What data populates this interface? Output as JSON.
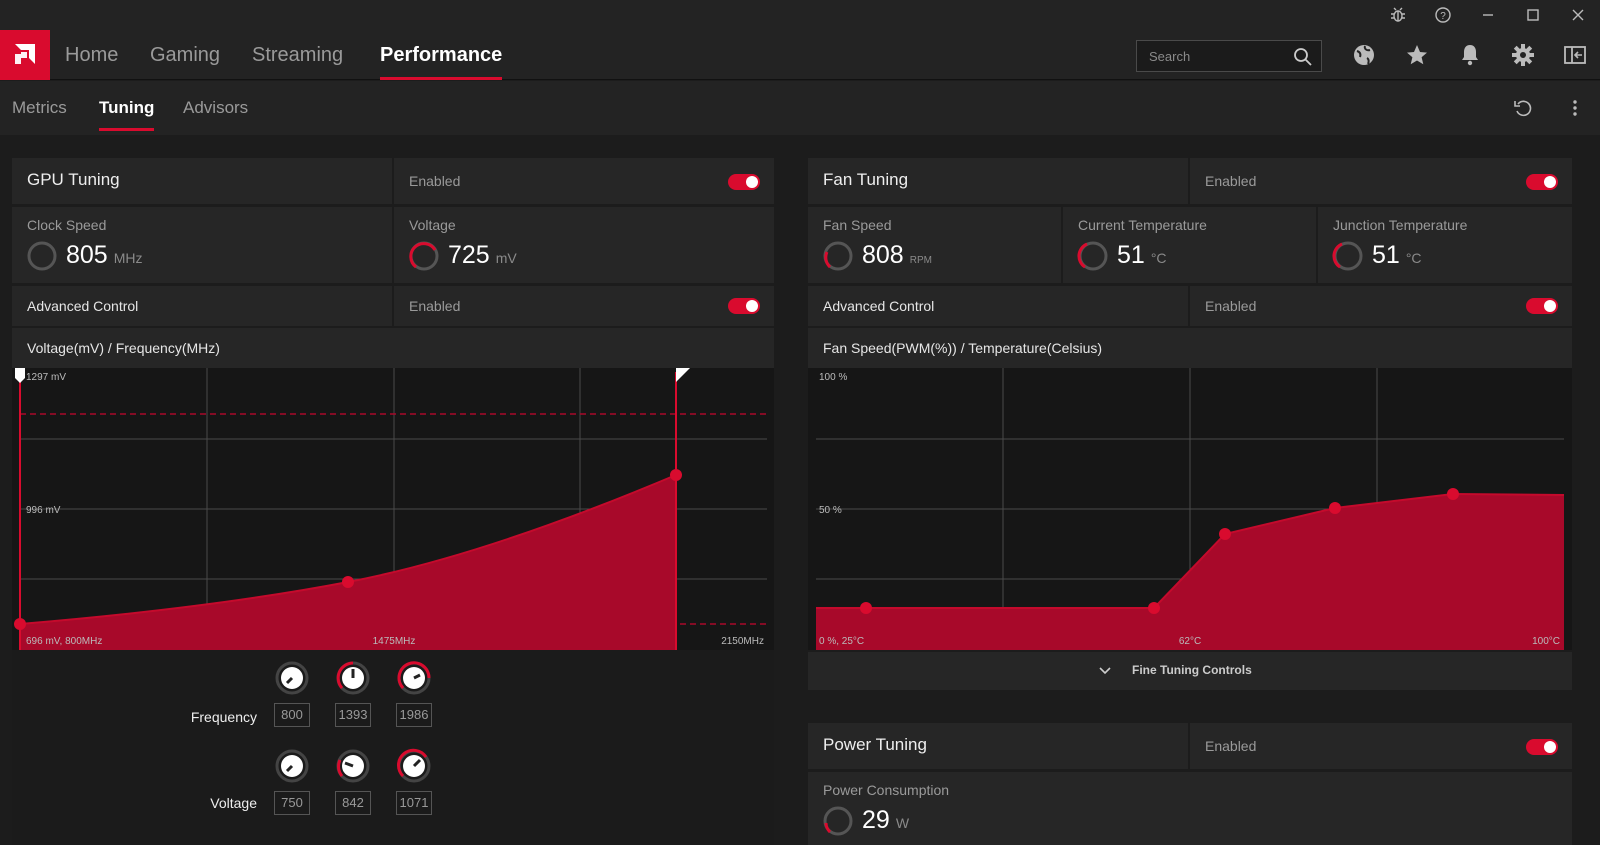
{
  "window": {
    "controls": [
      "bug-icon",
      "help-icon",
      "minimize-icon",
      "maximize-icon",
      "close-icon"
    ]
  },
  "nav": {
    "tabs": [
      {
        "label": "Home"
      },
      {
        "label": "Gaming"
      },
      {
        "label": "Streaming"
      },
      {
        "label": "Performance"
      }
    ],
    "active": "Performance",
    "search_placeholder": "Search",
    "icons": [
      "globe-icon",
      "star-icon",
      "bell-icon",
      "gear-icon",
      "sidebar-icon"
    ]
  },
  "subnav": {
    "tabs": [
      {
        "label": "Metrics"
      },
      {
        "label": "Tuning"
      },
      {
        "label": "Advisors"
      }
    ],
    "active": "Tuning"
  },
  "gpu": {
    "title": "GPU Tuning",
    "enabled_label": "Enabled",
    "enabled": true,
    "clock": {
      "label": "Clock Speed",
      "value": "805",
      "unit": "MHz"
    },
    "voltage": {
      "label": "Voltage",
      "value": "725",
      "unit": "mV"
    },
    "advanced": {
      "label": "Advanced Control",
      "enabled_label": "Enabled",
      "enabled": true
    },
    "curve_title": "Voltage(mV) / Frequency(MHz)",
    "chart_labels": {
      "ymax": "1297 mV",
      "ymid": "996 mV",
      "origin": "696 mV, 800MHz",
      "xmid": "1475MHz",
      "xmax": "2150MHz"
    },
    "frequency": {
      "label": "Frequency",
      "values": [
        "800",
        "1393",
        "1986"
      ]
    },
    "voltage_knobs": {
      "label": "Voltage",
      "values": [
        "750",
        "842",
        "1071"
      ]
    }
  },
  "fan": {
    "title": "Fan Tuning",
    "enabled_label": "Enabled",
    "enabled": true,
    "speed": {
      "label": "Fan Speed",
      "value": "808",
      "unit": "RPM"
    },
    "current_temp": {
      "label": "Current Temperature",
      "value": "51",
      "unit": "°C"
    },
    "junction_temp": {
      "label": "Junction Temperature",
      "value": "51",
      "unit": "°C"
    },
    "advanced": {
      "label": "Advanced Control",
      "enabled_label": "Enabled",
      "enabled": true
    },
    "curve_title": "Fan Speed(PWM(%)) / Temperature(Celsius)",
    "chart_labels": {
      "ymax": "100 %",
      "ymid": "50 %",
      "origin": "0 %, 25°C",
      "xmid": "62°C",
      "xmax": "100°C"
    },
    "fine_tuning_label": "Fine Tuning Controls"
  },
  "power": {
    "title": "Power Tuning",
    "enabled_label": "Enabled",
    "enabled": true,
    "consumption": {
      "label": "Power Consumption",
      "value": "29",
      "unit": "W"
    }
  },
  "colors": {
    "accent": "#d90b2e",
    "fill": "#a8092a",
    "bg": "#1c1c1c",
    "panel": "#262626"
  }
}
